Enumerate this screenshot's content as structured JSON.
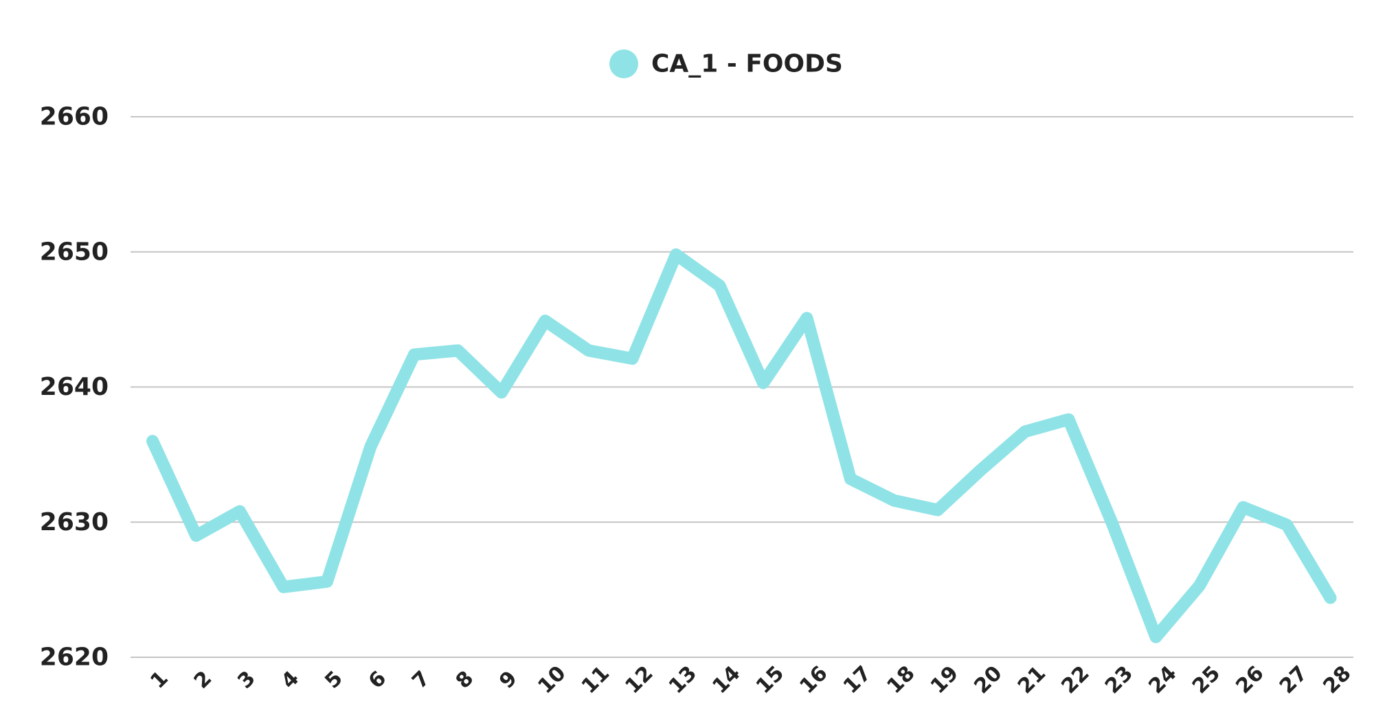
{
  "chart_data": {
    "type": "line",
    "title": "",
    "xlabel": "",
    "ylabel": "",
    "x": [
      "1",
      "2",
      "3",
      "4",
      "5",
      "6",
      "7",
      "8",
      "9",
      "10",
      "11",
      "12",
      "13",
      "14",
      "15",
      "16",
      "17",
      "18",
      "19",
      "20",
      "21",
      "22",
      "23",
      "24",
      "25",
      "26",
      "27",
      "28"
    ],
    "series": [
      {
        "name": "CA_1 - FOODS",
        "color": "#8fe3e6",
        "values": [
          2636,
          2629,
          2630.8,
          2625.2,
          2625.6,
          2635.6,
          2642.4,
          2642.7,
          2639.6,
          2644.9,
          2642.7,
          2642.1,
          2649.8,
          2647.5,
          2640.3,
          2645.1,
          2633.2,
          2631.6,
          2630.9,
          2633.9,
          2636.7,
          2637.6,
          2629.9,
          2621.5,
          2625.3,
          2631.1,
          2629.8,
          2624.4
        ]
      }
    ],
    "ylim": [
      2620,
      2660
    ],
    "yticks": [
      2620,
      2630,
      2640,
      2650,
      2660
    ],
    "grid": true,
    "legend_position": "top-center"
  }
}
